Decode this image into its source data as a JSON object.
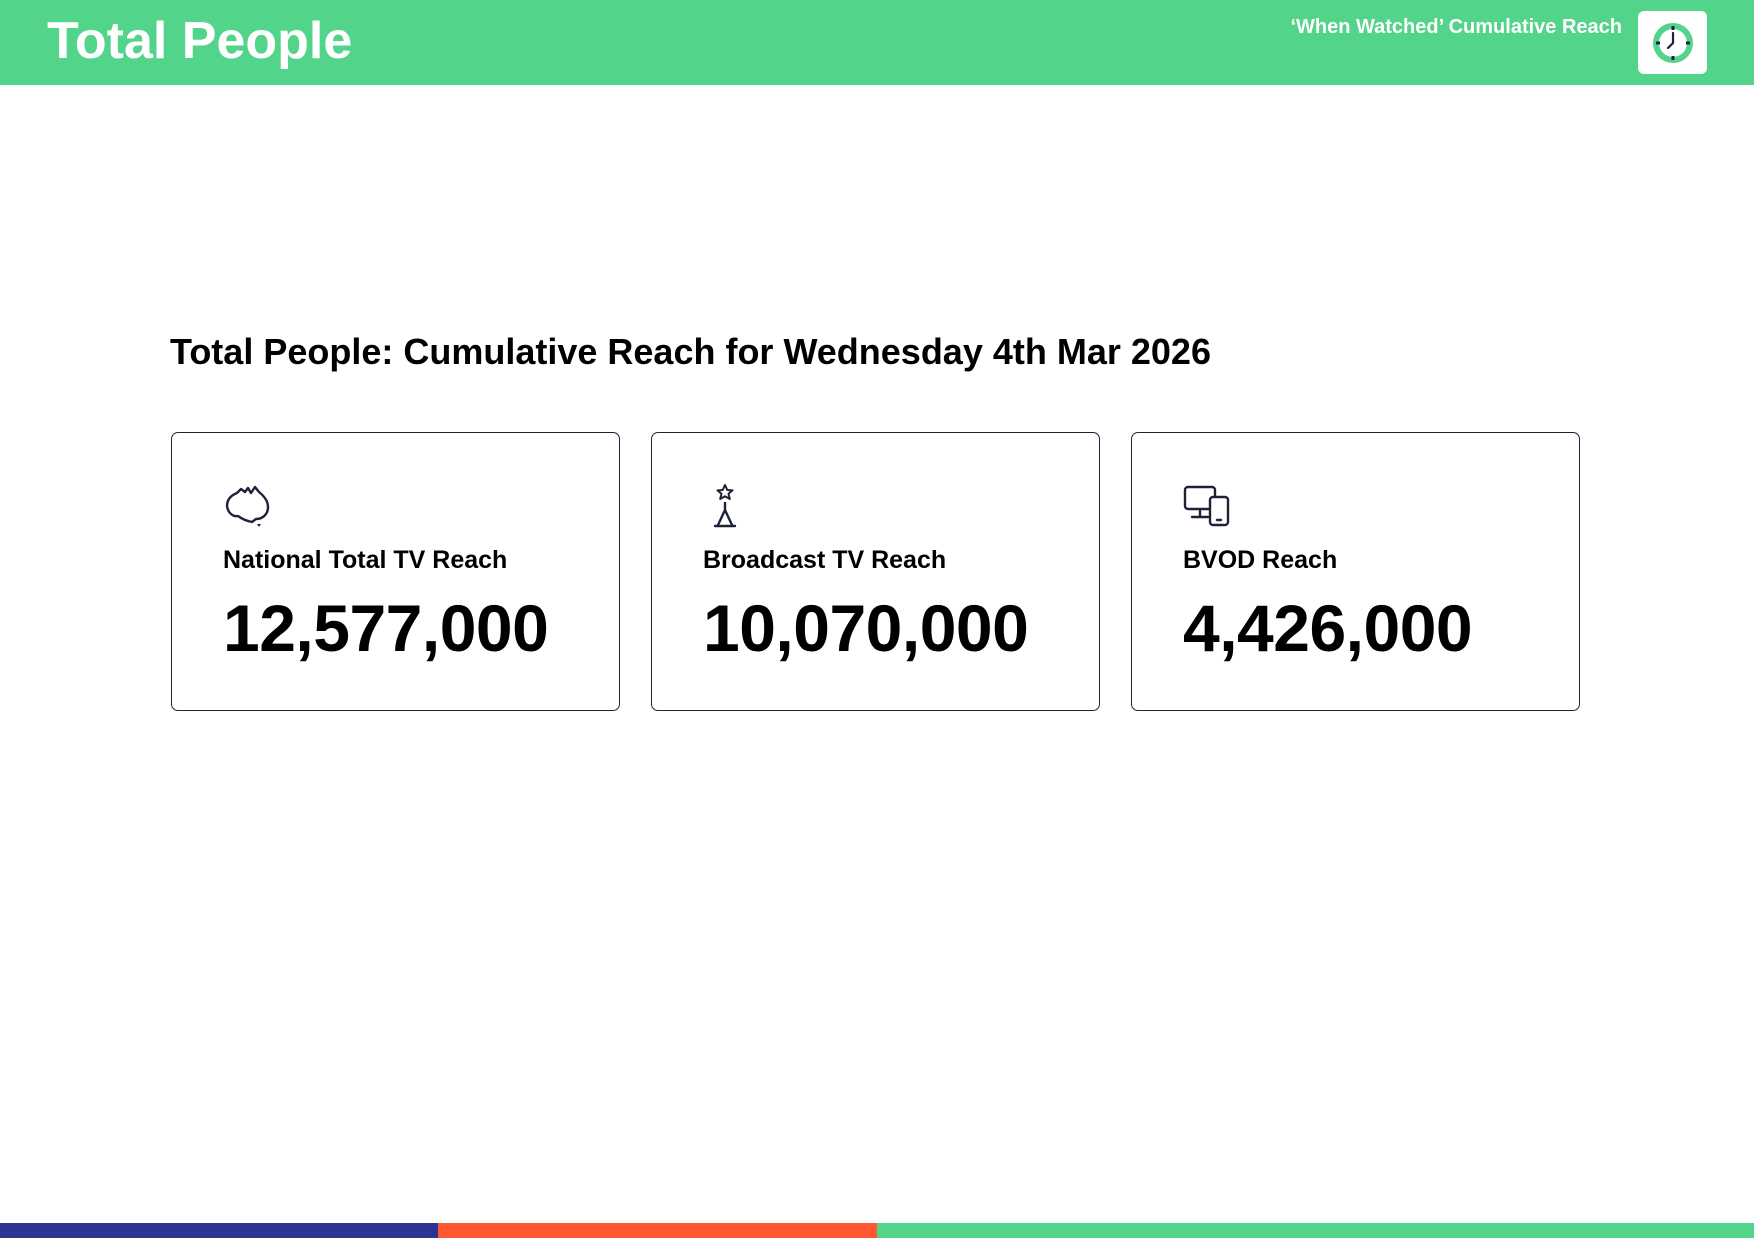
{
  "header": {
    "title": "Total People",
    "subtitle": "‘When Watched’ Cumulative Reach",
    "logo_icon": "clock-icon"
  },
  "section": {
    "heading": "Total People: Cumulative Reach for Wednesday 4th Mar 2026"
  },
  "cards": [
    {
      "icon": "australia-map-icon",
      "label": "National Total TV Reach",
      "value": "12,577,000"
    },
    {
      "icon": "broadcast-tower-icon",
      "label": "Broadcast TV Reach",
      "value": "10,070,000"
    },
    {
      "icon": "devices-icon",
      "label": "BVOD Reach",
      "value": "4,426,000"
    }
  ],
  "colors": {
    "brand_green": "#52d48a",
    "brand_navy": "#2d3593",
    "brand_orange": "#ff5730",
    "card_border": "#1e2238"
  }
}
